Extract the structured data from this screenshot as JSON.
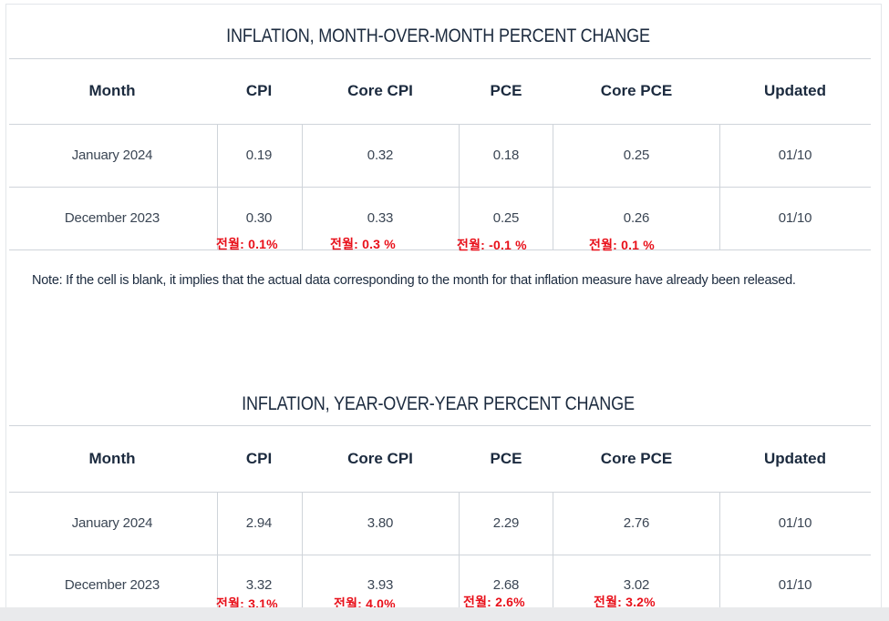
{
  "columns": [
    "Month",
    "CPI",
    "Core CPI",
    "PCE",
    "Core PCE",
    "Updated"
  ],
  "mom": {
    "title": "INFLATION, MONTH-OVER-MONTH PERCENT CHANGE",
    "rows": [
      {
        "month": "January 2024",
        "cpi": "0.19",
        "core_cpi": "0.32",
        "pce": "0.18",
        "core_pce": "0.25",
        "updated": "01/10"
      },
      {
        "month": "December 2023",
        "cpi": "0.30",
        "core_cpi": "0.33",
        "pce": "0.25",
        "core_pce": "0.26",
        "updated": "01/10"
      }
    ],
    "annotations": {
      "cpi": "전월: 0.1%",
      "core_cpi": "전월: 0.3 %",
      "pce": "전월: -0.1 %",
      "core_pce": "전월: 0.1 %"
    }
  },
  "note": "Note: If the cell is blank, it implies that the actual data corresponding to the month for that inflation measure have already been released.",
  "yoy": {
    "title": "INFLATION, YEAR-OVER-YEAR PERCENT CHANGE",
    "rows": [
      {
        "month": "January 2024",
        "cpi": "2.94",
        "core_cpi": "3.80",
        "pce": "2.29",
        "core_pce": "2.76",
        "updated": "01/10"
      },
      {
        "month": "December 2023",
        "cpi": "3.32",
        "core_cpi": "3.93",
        "pce": "2.68",
        "core_pce": "3.02",
        "updated": "01/10"
      }
    ],
    "annotations": {
      "cpi": "전월: 3.1%",
      "core_cpi": "전월: 4.0%",
      "pce": "전월: 2.6%",
      "core_pce": "전월: 3.2%"
    }
  },
  "colors": {
    "text": "#1b2a3e",
    "cell_text": "#3b4654",
    "annotation": "#e8101a",
    "rule": "#cfd4da"
  }
}
